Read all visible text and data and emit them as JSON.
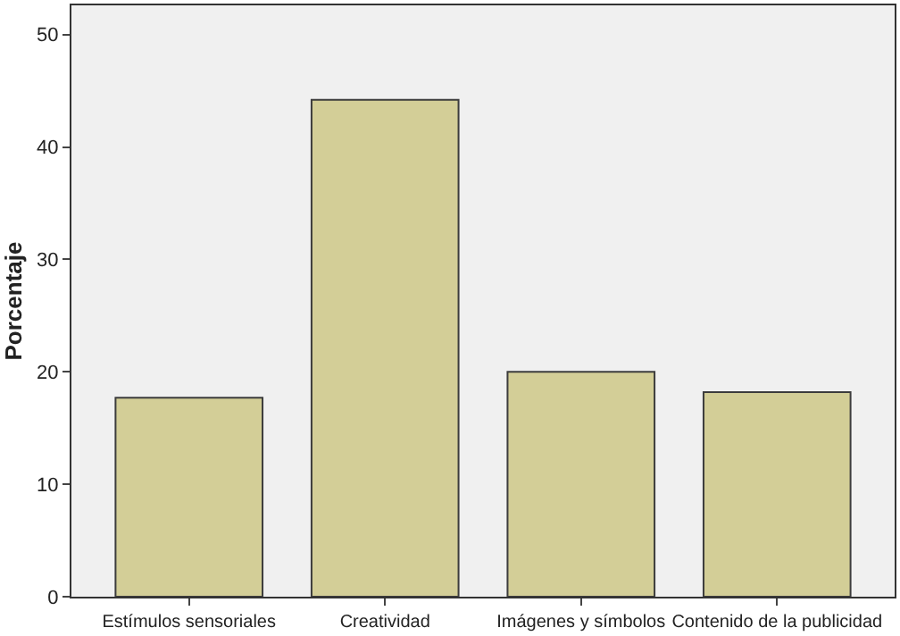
{
  "chart_data": {
    "type": "bar",
    "ylabel": "Porcentaje",
    "categories": [
      "Estímulos sensoriales",
      "Creatividad",
      "Imágenes y símbolos",
      "Contenido de la publicidad"
    ],
    "values": [
      17.7,
      44.2,
      20.0,
      18.2
    ],
    "color": "#d3ce97",
    "ylim": [
      0,
      52.6
    ],
    "yticks": [
      0,
      10,
      20,
      30,
      40,
      50
    ],
    "grid": false,
    "legend": false
  }
}
